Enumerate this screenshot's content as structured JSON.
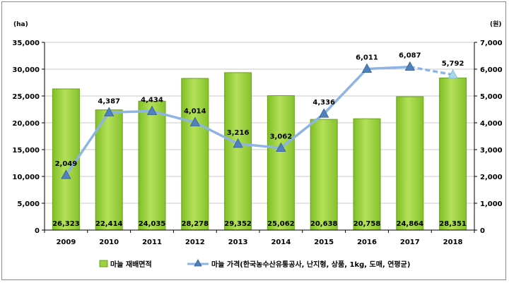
{
  "chart_data": {
    "type": "bar",
    "categories": [
      "2009",
      "2010",
      "2011",
      "2012",
      "2013",
      "2014",
      "2015",
      "2016",
      "2017",
      "2018"
    ],
    "series": [
      {
        "name": "마늘 재배면적",
        "type": "bar",
        "axis": "left",
        "values": [
          26323,
          22414,
          24035,
          28278,
          29352,
          25062,
          20638,
          20758,
          24864,
          28351
        ],
        "labels": [
          "26,323",
          "22,414",
          "24,035",
          "28,278",
          "29,352",
          "25,062",
          "20,638",
          "20,758",
          "24,864",
          "28,351"
        ]
      },
      {
        "name": "마늘 가격(한국농수산유통공사, 난지형, 상품, 1kg, 도매, 연평균)",
        "type": "line",
        "axis": "right",
        "values": [
          2049,
          4387,
          4434,
          4014,
          3216,
          3062,
          4336,
          6011,
          6087,
          5792
        ],
        "labels": [
          "2,049",
          "4,387",
          "4,434",
          "4,014",
          "3,216",
          "3,062",
          "4,336",
          "6,011",
          "6,087",
          "5,792"
        ],
        "dashed_from_index": 8
      }
    ],
    "left_axis": {
      "unit": "(ha)",
      "ylim": [
        0,
        35000
      ],
      "ticks": [
        "0",
        "5,000",
        "10,000",
        "15,000",
        "20,000",
        "25,000",
        "30,000",
        "35,000"
      ]
    },
    "right_axis": {
      "unit": "(원)",
      "ylim": [
        0,
        7000
      ],
      "ticks": [
        "0",
        "1,000",
        "2,000",
        "3,000",
        "4,000",
        "5,000",
        "6,000",
        "7,000"
      ]
    },
    "grid": true,
    "legend_position": "bottom",
    "colors": {
      "bar_fill": "#9bd13a",
      "bar_edge": "#6aa31c",
      "line": "#8eb4e3",
      "marker": "#4f81bd",
      "last_marker": "#a9d8e8",
      "grid": "#c8c8c8"
    }
  }
}
